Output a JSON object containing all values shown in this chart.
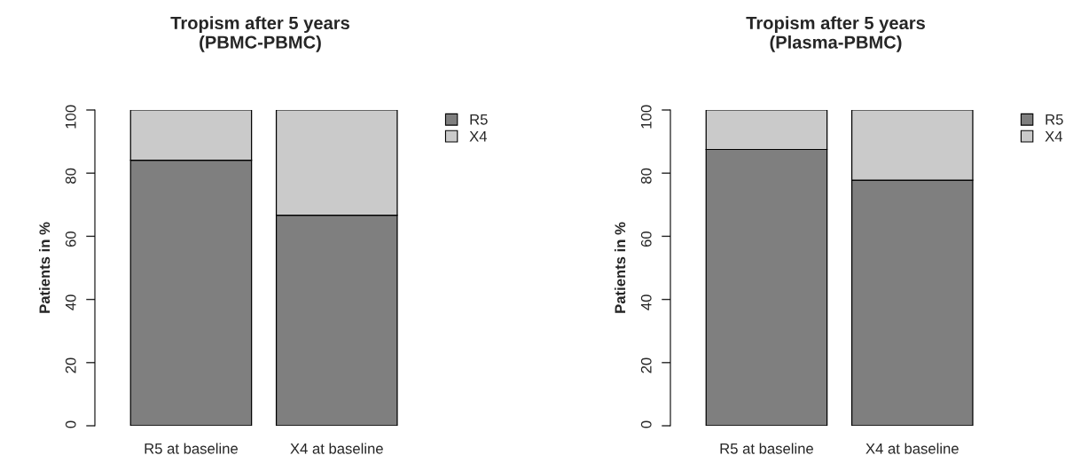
{
  "chart_data": [
    {
      "type": "bar",
      "title": "Tropism after 5 years\n(PBMC-PBMC)",
      "ylabel": "Patients in %",
      "categories": [
        "R5 at baseline",
        "X4 at baseline"
      ],
      "stacked": true,
      "series": [
        {
          "name": "R5",
          "color": "#7f7f7f",
          "values": [
            84.1,
            66.7
          ]
        },
        {
          "name": "X4",
          "color": "#cacaca",
          "values": [
            15.9,
            33.3
          ]
        }
      ],
      "ylim": [
        0,
        100
      ],
      "yticks": [
        0,
        20,
        40,
        60,
        80,
        100
      ],
      "grid": false,
      "legend": "top right"
    },
    {
      "type": "bar",
      "title": "Tropism after 5 years\n(Plasma-PBMC)",
      "ylabel": "Patients in %",
      "categories": [
        "R5 at baseline",
        "X4 at baseline"
      ],
      "stacked": true,
      "series": [
        {
          "name": "R5",
          "color": "#7f7f7f",
          "values": [
            87.5,
            77.8
          ]
        },
        {
          "name": "X4",
          "color": "#cacaca",
          "values": [
            12.5,
            22.2
          ]
        }
      ],
      "ylim": [
        0,
        100
      ],
      "yticks": [
        0,
        20,
        40,
        60,
        80,
        100
      ],
      "grid": false,
      "legend": "top right"
    }
  ]
}
